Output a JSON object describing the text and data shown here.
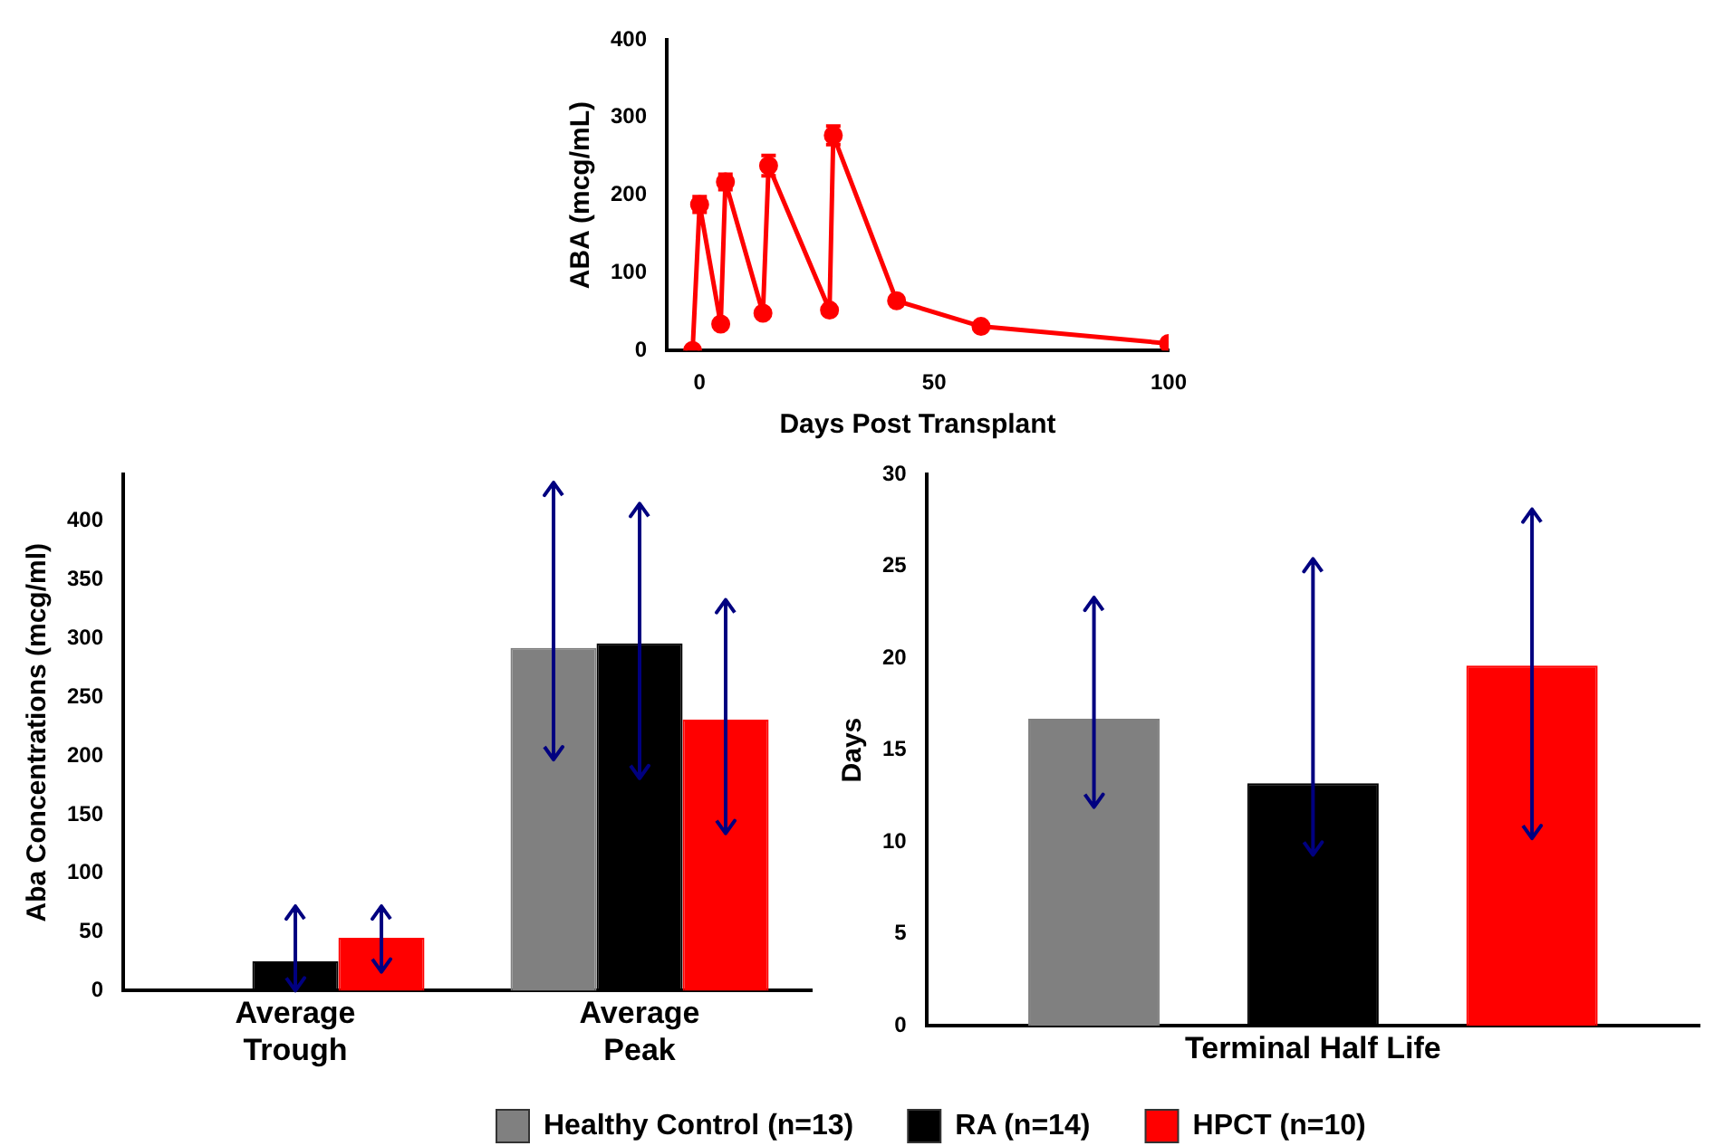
{
  "chart_data": [
    {
      "type": "line",
      "xlabel": "Days Post Transplant",
      "ylabel": "ABA (mcg/mL)",
      "x": [
        -1.5,
        0,
        4.5,
        5.5,
        13.5,
        14.7,
        27.7,
        28.5,
        42,
        60,
        100
      ],
      "series": [
        {
          "color": "#ff0000",
          "values": [
            0,
            188,
            34,
            217,
            48,
            238,
            52,
            277,
            64,
            31,
            9
          ],
          "errors": [
            null,
            10,
            null,
            10,
            null,
            13,
            null,
            12,
            null,
            null,
            null
          ]
        }
      ],
      "xlim": [
        -7,
        100
      ],
      "xticks": [
        0,
        50,
        100
      ],
      "ylim": [
        0,
        400
      ],
      "yticks": [
        0,
        100,
        200,
        300,
        400
      ],
      "marker": "circle",
      "line_style": "solid",
      "grid": false,
      "legend": false
    },
    {
      "type": "bar",
      "ylabel": "Aba Concentrations (mcg/ml)",
      "categories": [
        "Average Trough",
        "Average Peak"
      ],
      "series": [
        {
          "name": "Healthy Control (n=13)",
          "color": "#808080",
          "values": [
            null,
            292
          ],
          "errors": [
            null,
            [
              197,
              433
            ]
          ]
        },
        {
          "name": "RA (n=14)",
          "color": "#000000",
          "values": [
            25,
            296
          ],
          "errors": [
            [
              0,
              72
            ],
            [
              181,
              415
            ]
          ]
        },
        {
          "name": "HPCT (n=10)",
          "color": "#ff0000",
          "values": [
            45,
            231
          ],
          "errors": [
            [
              16,
              72
            ],
            [
              134,
              333
            ]
          ]
        }
      ],
      "ylim": [
        0,
        440
      ],
      "yticks": [
        0,
        50,
        100,
        150,
        200,
        250,
        300,
        350,
        400
      ],
      "grid": false,
      "legend": "bottom"
    },
    {
      "type": "bar",
      "ylabel": "Days",
      "categories": [
        "Terminal Half Life"
      ],
      "series": [
        {
          "color": "#808080",
          "values": [
            16.7
          ],
          "errors": [
            [
              11.9,
              23.3
            ]
          ]
        },
        {
          "color": "#000000",
          "values": [
            13.2
          ],
          "errors": [
            [
              9.3,
              25.4
            ]
          ]
        },
        {
          "color": "#ff0000",
          "values": [
            19.6
          ],
          "errors": [
            [
              10.2,
              28.1
            ]
          ]
        }
      ],
      "ylim": [
        0,
        30
      ],
      "yticks": [
        0,
        5,
        10,
        15,
        20,
        25,
        30
      ],
      "grid": false,
      "legend": false
    }
  ]
}
